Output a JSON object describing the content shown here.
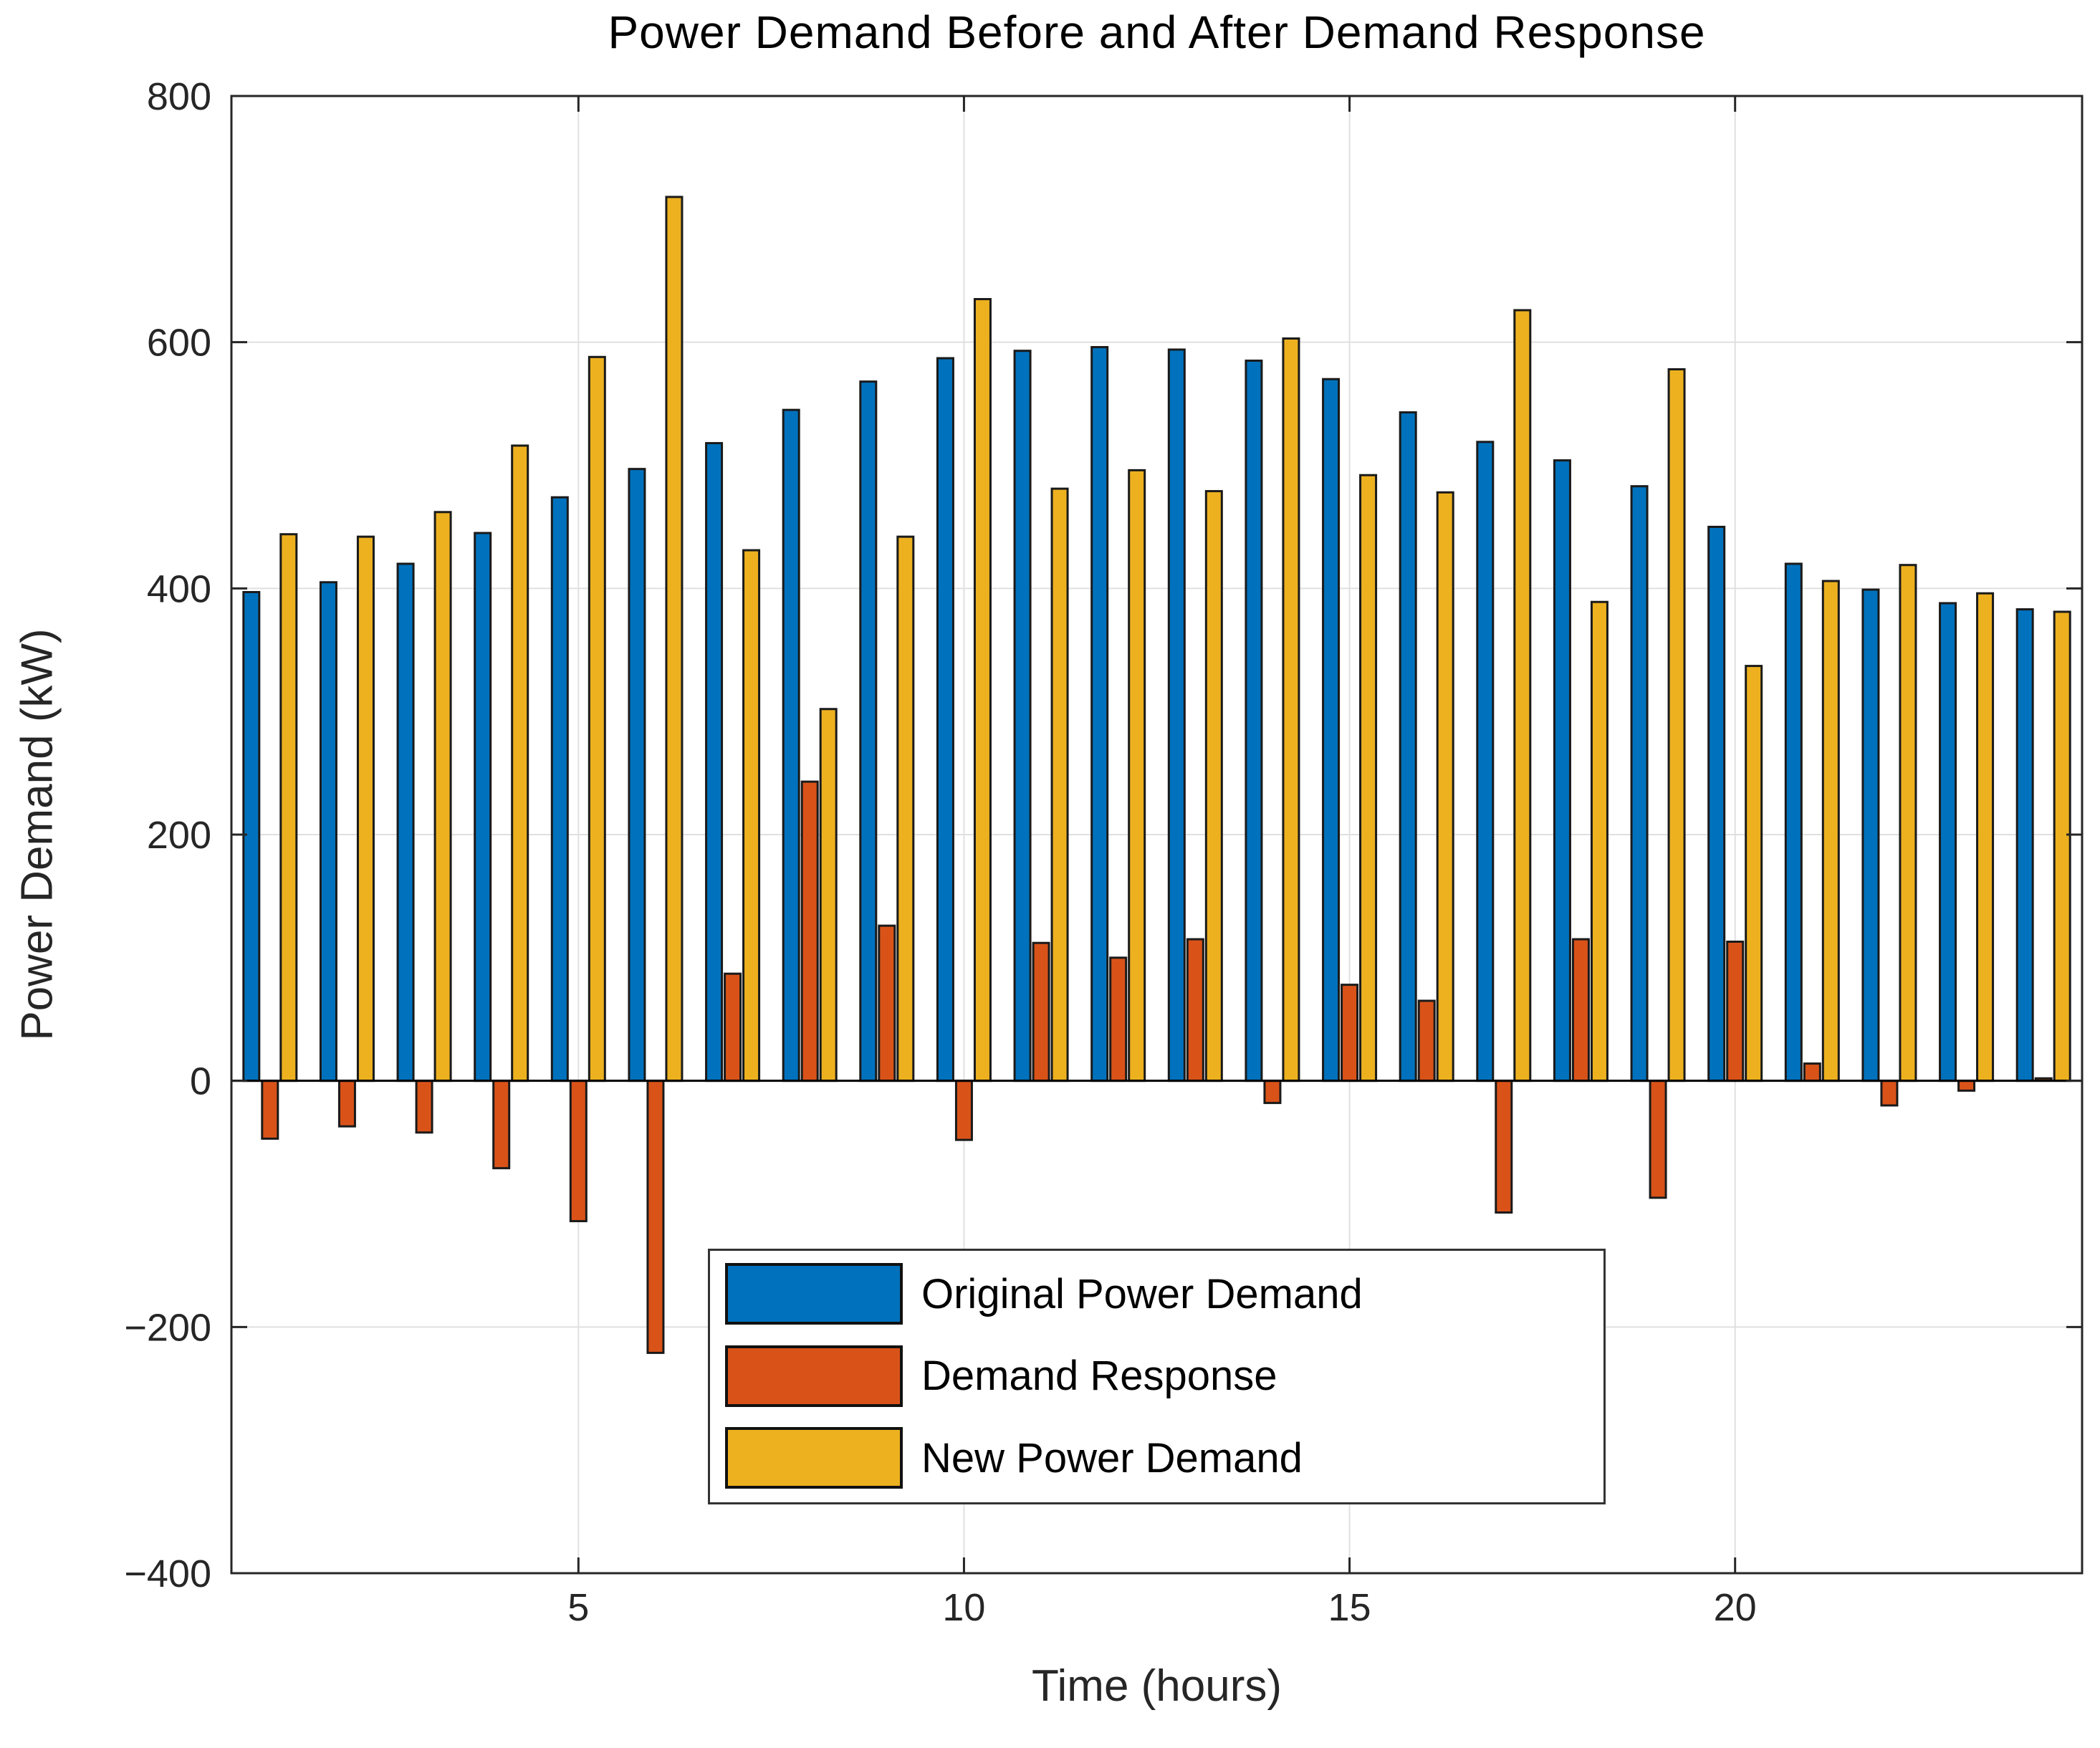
{
  "title": "Power Demand Before and After Demand Response",
  "chart_data": {
    "type": "bar",
    "title": "Power Demand Before and After Demand Response",
    "xlabel": "Time (hours)",
    "ylabel": "Power Demand (kW)",
    "x": [
      1,
      2,
      3,
      4,
      5,
      6,
      7,
      8,
      9,
      10,
      11,
      12,
      13,
      14,
      15,
      16,
      17,
      18,
      19,
      20,
      21,
      22,
      23,
      24
    ],
    "xlim": [
      0.5,
      24.5
    ],
    "ylim": [
      -400,
      800
    ],
    "grid": true,
    "legend_position": "inside-lower-center",
    "series": [
      {
        "name": "Original Power Demand",
        "color": "#0072BD",
        "values": [
          397,
          405,
          420,
          445,
          474,
          497,
          518,
          545,
          568,
          587,
          593,
          596,
          594,
          585,
          570,
          543,
          519,
          504,
          483,
          450,
          420,
          399,
          388,
          383
        ]
      },
      {
        "name": "Demand Response",
        "color": "#D95319",
        "values": [
          -47,
          -37,
          -42,
          -71,
          -114,
          -221,
          87,
          243,
          126,
          -48,
          112,
          100,
          115,
          -18,
          78,
          65,
          -107,
          115,
          -95,
          113,
          14,
          -20,
          -8,
          2
        ]
      },
      {
        "name": "New Power Demand",
        "color": "#EDB120",
        "values": [
          444,
          442,
          462,
          516,
          588,
          718,
          431,
          302,
          442,
          635,
          481,
          496,
          479,
          603,
          492,
          478,
          626,
          389,
          578,
          337,
          406,
          419,
          396,
          381
        ]
      }
    ],
    "xticks": {
      "values": [
        5,
        10,
        15,
        20
      ],
      "labels": [
        "5",
        "10",
        "15",
        "20"
      ]
    },
    "yticks": {
      "values": [
        800,
        600,
        400,
        200,
        0,
        -200,
        -400
      ],
      "labels": [
        "800",
        "600",
        "400",
        "200",
        "0",
        "−200",
        "−400"
      ]
    },
    "colors": {
      "axis": "#262626",
      "grid": "#E0E0E0",
      "bar_edge": "#1a1a1a",
      "zero_line": "#000000"
    }
  }
}
